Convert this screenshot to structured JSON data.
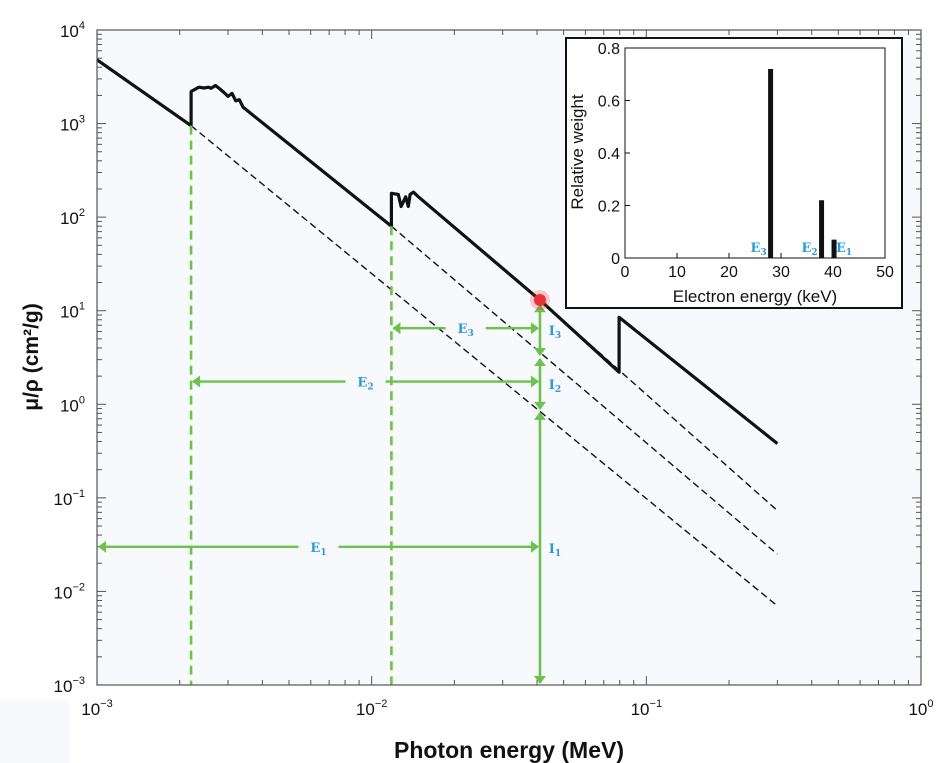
{
  "chart_data": [
    {
      "type": "line",
      "title": "",
      "xlabel": "Photon energy (MeV)",
      "ylabel": "μ/ρ (cm²/g)",
      "xscale": "log",
      "yscale": "log",
      "xlim": [
        0.001,
        1
      ],
      "ylim": [
        0.001,
        10000
      ],
      "x_ticks": [
        {
          "base": "10",
          "exp": "−3",
          "value": 0.001
        },
        {
          "base": "10",
          "exp": "−2",
          "value": 0.01
        },
        {
          "base": "10",
          "exp": "−1",
          "value": 0.1
        },
        {
          "base": "10",
          "exp": "0",
          "value": 1
        }
      ],
      "y_ticks": [
        {
          "base": "10",
          "exp": "−3",
          "value": 0.001
        },
        {
          "base": "10",
          "exp": "−2",
          "value": 0.01
        },
        {
          "base": "10",
          "exp": "−1",
          "value": 0.1
        },
        {
          "base": "10",
          "exp": "0",
          "value": 1
        },
        {
          "base": "10",
          "exp": "1",
          "value": 10
        },
        {
          "base": "10",
          "exp": "2",
          "value": 100
        },
        {
          "base": "10",
          "exp": "3",
          "value": 1000
        },
        {
          "base": "10",
          "exp": "4",
          "value": 10000
        }
      ],
      "grid": false,
      "series": [
        {
          "style": "solid-thick",
          "color": "#111111",
          "x": [
            0.001,
            0.0022,
            0.0022,
            0.00235,
            0.00245,
            0.00255,
            0.0026,
            0.0027,
            0.0028,
            0.0029,
            0.003,
            0.0031,
            0.0032,
            0.0033,
            0.0034,
            0.0035,
            0.0118,
            0.0118,
            0.0125,
            0.0128,
            0.0133,
            0.0136,
            0.0138,
            0.0142,
            0.0148,
            0.041,
            0.0796,
            0.0796,
            0.3
          ],
          "y": [
            4800,
            950,
            2200,
            2450,
            2400,
            2450,
            2380,
            2550,
            2350,
            2150,
            1950,
            2100,
            1750,
            1800,
            1500,
            1400,
            80,
            180,
            175,
            130,
            165,
            130,
            175,
            185,
            165,
            13,
            2.2,
            8.5,
            0.38
          ]
        },
        {
          "style": "dashed",
          "color": "#111111",
          "x": [
            0.0022,
            0.3
          ],
          "y": [
            950,
            0.007
          ]
        },
        {
          "style": "dashed",
          "color": "#111111",
          "x": [
            0.0118,
            0.3
          ],
          "y": [
            80,
            0.025
          ]
        },
        {
          "style": "dashed",
          "color": "#111111",
          "x": [
            0.041,
            0.3
          ],
          "y": [
            13,
            0.073
          ]
        }
      ],
      "marker": {
        "x": 0.041,
        "y": 13,
        "color": "#e8333a"
      },
      "annotations": {
        "color_lines": "#6cc24a",
        "color_text": "#2a9bd6",
        "edge_lines": [
          {
            "x": 0.0022,
            "y_top": 950
          },
          {
            "x": 0.0118,
            "y_top": 80
          }
        ],
        "vertical_energy": 0.041,
        "labels": {
          "E1": {
            "main": "E",
            "sub": "1"
          },
          "E2": {
            "main": "E",
            "sub": "2"
          },
          "E3": {
            "main": "E",
            "sub": "3"
          },
          "I1": {
            "main": "I",
            "sub": "1"
          },
          "I2": {
            "main": "I",
            "sub": "2"
          },
          "I3": {
            "main": "I",
            "sub": "3"
          }
        },
        "energy_arrows": [
          {
            "name": "E1",
            "x_from": 0.001,
            "x_to": 0.041,
            "y": 0.03
          },
          {
            "name": "E2",
            "x_from": 0.0022,
            "x_to": 0.041,
            "y": 1.75
          },
          {
            "name": "E3",
            "x_from": 0.0118,
            "x_to": 0.041,
            "y": 6.5
          }
        ],
        "intensity_arrows": [
          {
            "name": "I1",
            "y_from": 0.001,
            "y_to": 0.85
          },
          {
            "name": "I2",
            "y_from": 0.85,
            "y_to": 3.2
          },
          {
            "name": "I3",
            "y_from": 3.2,
            "y_to": 12
          }
        ]
      }
    },
    {
      "type": "bar",
      "title": "",
      "xlabel": "Electron energy (keV)",
      "ylabel": "Relative weight",
      "xlim": [
        0,
        50
      ],
      "ylim": [
        0,
        0.8
      ],
      "x_ticks": [
        "0",
        "10",
        "20",
        "30",
        "40",
        "50"
      ],
      "y_ticks": [
        "0",
        "0.2",
        "0.4",
        "0.6",
        "0.8"
      ],
      "bars": [
        {
          "x": 28,
          "value": 0.72,
          "label": {
            "main": "E",
            "sub": "3"
          }
        },
        {
          "x": 37.8,
          "value": 0.22,
          "label": {
            "main": "E",
            "sub": "2"
          }
        },
        {
          "x": 40.2,
          "value": 0.07,
          "label": {
            "main": "E",
            "sub": "1"
          }
        }
      ],
      "legend": "none"
    }
  ]
}
